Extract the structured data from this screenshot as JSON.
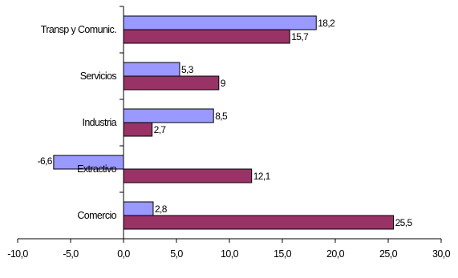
{
  "chart_data": {
    "type": "bar",
    "orientation": "horizontal",
    "categories": [
      "Transp y Comunic.",
      "Servicios",
      "Industria",
      "Extractivo",
      "Comercio"
    ],
    "series": [
      {
        "values": [
          18.2,
          5.3,
          8.5,
          -6.6,
          2.8
        ],
        "value_labels": [
          "18,2",
          "5,3",
          "8,5",
          "-6,6",
          "2,8"
        ],
        "color": "#9999ff"
      },
      {
        "values": [
          15.7,
          9,
          2.7,
          12.1,
          25.5
        ],
        "value_labels": [
          "15,7",
          "9",
          "2,7",
          "12,1",
          "25,5"
        ],
        "color": "#993366"
      }
    ],
    "xlim": [
      -10,
      30
    ],
    "xticks": [
      -10,
      -5,
      0,
      5,
      10,
      15,
      20,
      25,
      30
    ],
    "xtick_labels": [
      "-10,0",
      "-5,0",
      "0,0",
      "5,0",
      "10,0",
      "15,0",
      "20,0",
      "25,0",
      "30,0"
    ],
    "grid": false,
    "legend": "none",
    "title": "",
    "xlabel": "",
    "ylabel": ""
  }
}
